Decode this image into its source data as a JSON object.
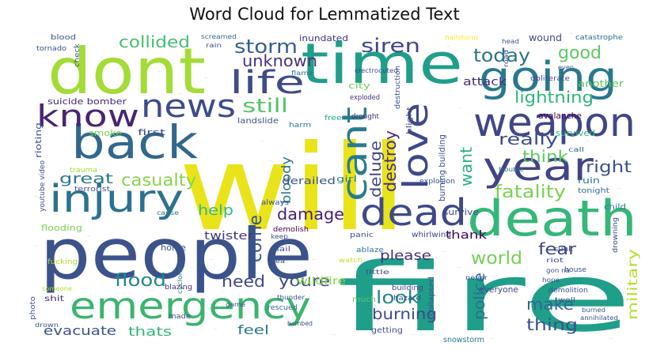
{
  "chart_data": {
    "type": "wordcloud",
    "title": "Word Cloud for Lemmatized Text",
    "palette": "viridis",
    "background": "#ffffff",
    "words": [
      {
        "text": "will",
        "color": "#e8e419"
      },
      {
        "text": "fire",
        "color": "#1f9e89"
      },
      {
        "text": "people",
        "color": "#3b528b"
      },
      {
        "text": "time",
        "color": "#1f9e89"
      },
      {
        "text": "dont",
        "color": "#a5db36"
      },
      {
        "text": "death",
        "color": "#35b779"
      },
      {
        "text": "emergency",
        "color": "#3bb46f"
      },
      {
        "text": "going",
        "color": "#2a788e"
      },
      {
        "text": "back",
        "color": "#31688e"
      },
      {
        "text": "weapon",
        "color": "#404688"
      },
      {
        "text": "injury",
        "color": "#2c728e"
      },
      {
        "text": "dead",
        "color": "#3e4989"
      },
      {
        "text": "year",
        "color": "#414487"
      },
      {
        "text": "news",
        "color": "#3e4c8a"
      },
      {
        "text": "know",
        "color": "#482576"
      },
      {
        "text": "life",
        "color": "#3e4c8a"
      },
      {
        "text": "cant",
        "color": "#2a7b8e"
      },
      {
        "text": "love",
        "color": "#3e4989"
      },
      {
        "text": "storm",
        "color": "#355f8d"
      },
      {
        "text": "siren",
        "color": "#3f4788"
      },
      {
        "text": "collided",
        "color": "#44bf70"
      },
      {
        "text": "today",
        "color": "#2c738e"
      },
      {
        "text": "good",
        "color": "#5ec962"
      },
      {
        "text": "unknown",
        "color": "#46327e"
      },
      {
        "text": "still",
        "color": "#52c569"
      },
      {
        "text": "lightning",
        "color": "#2fb47c"
      },
      {
        "text": "fatality",
        "color": "#7ad151"
      },
      {
        "text": "casualty",
        "color": "#86d549"
      },
      {
        "text": "great",
        "color": "#2a788e"
      },
      {
        "text": "really",
        "color": "#3d4e8a"
      },
      {
        "text": "right",
        "color": "#3b528b"
      },
      {
        "text": "think",
        "color": "#5ec962"
      },
      {
        "text": "want",
        "color": "#2ab07f"
      },
      {
        "text": "destroy",
        "color": "#472d7b"
      },
      {
        "text": "deluge",
        "color": "#414487"
      },
      {
        "text": "damage",
        "color": "#481f70"
      },
      {
        "text": "help",
        "color": "#35b779"
      },
      {
        "text": "world",
        "color": "#75d054"
      },
      {
        "text": "fear",
        "color": "#414487"
      },
      {
        "text": "come",
        "color": "#3b528b"
      },
      {
        "text": "flood",
        "color": "#24868e"
      },
      {
        "text": "need",
        "color": "#3e4989"
      },
      {
        "text": "youre",
        "color": "#3e4989"
      },
      {
        "text": "look",
        "color": "#24878e"
      },
      {
        "text": "please",
        "color": "#472d7b"
      },
      {
        "text": "burning",
        "color": "#3e4989"
      },
      {
        "text": "police",
        "color": "#2e6e8e"
      },
      {
        "text": "make",
        "color": "#31688e"
      },
      {
        "text": "military",
        "color": "#b5de2b"
      },
      {
        "text": "thing",
        "color": "#3b528b"
      },
      {
        "text": "thats",
        "color": "#2fb47c"
      },
      {
        "text": "feel",
        "color": "#2a788e"
      },
      {
        "text": "evacuate",
        "color": "#3b528b"
      },
      {
        "text": "bloody",
        "color": "#2c728e"
      },
      {
        "text": "thank",
        "color": "#440154"
      },
      {
        "text": "twister",
        "color": "#46337f"
      },
      {
        "text": "derailed",
        "color": "#3b528b"
      },
      {
        "text": "wildfire",
        "color": "#86d549"
      },
      {
        "text": "attack",
        "color": "#472c7a"
      },
      {
        "text": "wound",
        "color": "#3e4c8a"
      },
      {
        "text": "another",
        "color": "#5ec962"
      },
      {
        "text": "smoke",
        "color": "#7ad151"
      },
      {
        "text": "first",
        "color": "#414487"
      },
      {
        "text": "harm",
        "color": "#2a788e"
      },
      {
        "text": "rioting",
        "color": "#3b528b"
      },
      {
        "text": "suicide bomber",
        "color": "#482878"
      },
      {
        "text": "inundated",
        "color": "#46327e"
      },
      {
        "text": "blood",
        "color": "#3b528b"
      },
      {
        "text": "tornado",
        "color": "#3b528b"
      },
      {
        "text": "screamed",
        "color": "#31688e"
      },
      {
        "text": "hailstorm",
        "color": "#fde725"
      },
      {
        "text": "head",
        "color": "#3b528b"
      },
      {
        "text": "catastrophe",
        "color": "#2c728e"
      },
      {
        "text": "electrocuted",
        "color": "#3e4989"
      },
      {
        "text": "city",
        "color": "#75d054"
      },
      {
        "text": "exploded",
        "color": "#46327e"
      },
      {
        "text": "drought",
        "color": "#472d7b"
      },
      {
        "text": "flame",
        "color": "#2c728e"
      },
      {
        "text": "rain",
        "color": "#3b528b"
      },
      {
        "text": "check",
        "color": "#3b528b"
      },
      {
        "text": "road",
        "color": "#414487"
      },
      {
        "text": "even",
        "color": "#3b528b"
      },
      {
        "text": "obliterate",
        "color": "#3e4989"
      },
      {
        "text": "landslide",
        "color": "#3b528b"
      },
      {
        "text": "free",
        "color": "#22a884"
      },
      {
        "text": "avalanche",
        "color": "#440154"
      },
      {
        "text": "blight",
        "color": "#3e4989"
      },
      {
        "text": "destruction",
        "color": "#3b528b"
      },
      {
        "text": "burning building",
        "color": "#3b528b"
      },
      {
        "text": "trouble",
        "color": "#31688e"
      },
      {
        "text": "call",
        "color": "#31688e"
      },
      {
        "text": "survived",
        "color": "#35b779"
      },
      {
        "text": "youtube video",
        "color": "#3b528b"
      },
      {
        "text": "trauma",
        "color": "#a5db36"
      },
      {
        "text": "terrorist",
        "color": "#3b528b"
      },
      {
        "text": "girl",
        "color": "#2a788e"
      },
      {
        "text": "ruin",
        "color": "#2a788e"
      },
      {
        "text": "tonight",
        "color": "#31688e"
      },
      {
        "text": "explosion",
        "color": "#3b528b"
      },
      {
        "text": "survive",
        "color": "#3e4989"
      },
      {
        "text": "child",
        "color": "#2a788e"
      },
      {
        "text": "flooding",
        "color": "#7ad151"
      },
      {
        "text": "cause",
        "color": "#2a788e"
      },
      {
        "text": "home",
        "color": "#3b528b"
      },
      {
        "text": "always",
        "color": "#3b528b"
      },
      {
        "text": "demolish",
        "color": "#440154"
      },
      {
        "text": "panic",
        "color": "#3b528b"
      },
      {
        "text": "ablaze",
        "color": "#2a788e"
      },
      {
        "text": "whirlwind",
        "color": "#3e4989"
      },
      {
        "text": "sunk",
        "color": "#3b528b"
      },
      {
        "text": "drowning",
        "color": "#3e4989"
      },
      {
        "text": "keep",
        "color": "#3b528b"
      },
      {
        "text": "hail",
        "color": "#3b528b"
      },
      {
        "text": "area",
        "color": "#3b528b"
      },
      {
        "text": "watch",
        "color": "#bddf26"
      },
      {
        "text": "little",
        "color": "#3b528b"
      },
      {
        "text": "riot",
        "color": "#3b528b"
      },
      {
        "text": "gon na",
        "color": "#3b528b"
      },
      {
        "text": "hope",
        "color": "#3b528b"
      },
      {
        "text": "fucking",
        "color": "#a5db36"
      },
      {
        "text": "shit",
        "color": "#482878"
      },
      {
        "text": "last",
        "color": "#3b528b"
      },
      {
        "text": "blazing",
        "color": "#46327e"
      },
      {
        "text": "cyclone",
        "color": "#2a788e"
      },
      {
        "text": "rescued",
        "color": "#31688e"
      },
      {
        "text": "much",
        "color": "#5ec962"
      },
      {
        "text": "building",
        "color": "#414487"
      },
      {
        "text": "hazard",
        "color": "#3b528b"
      },
      {
        "text": "collapsed",
        "color": "#3b528b"
      },
      {
        "text": "never",
        "color": "#3b528b"
      },
      {
        "text": "everyone",
        "color": "#3e4989"
      },
      {
        "text": "demolition",
        "color": "#3b528b"
      },
      {
        "text": "house",
        "color": "#3b528b"
      },
      {
        "text": "well",
        "color": "#3b528b"
      },
      {
        "text": "someone",
        "color": "#b5de2b"
      },
      {
        "text": "thunder",
        "color": "#3b528b"
      },
      {
        "text": "game",
        "color": "#3b528b"
      },
      {
        "text": "photo",
        "color": "#3b528b"
      },
      {
        "text": "made",
        "color": "#3b528b"
      },
      {
        "text": "drown",
        "color": "#3b528b"
      },
      {
        "text": "bombed",
        "color": "#3e4989"
      },
      {
        "text": "getting",
        "color": "#3b528b"
      },
      {
        "text": "snowstorm",
        "color": "#2a788e"
      },
      {
        "text": "burned",
        "color": "#3b528b"
      },
      {
        "text": "annihilated",
        "color": "#3b528b"
      }
    ]
  }
}
